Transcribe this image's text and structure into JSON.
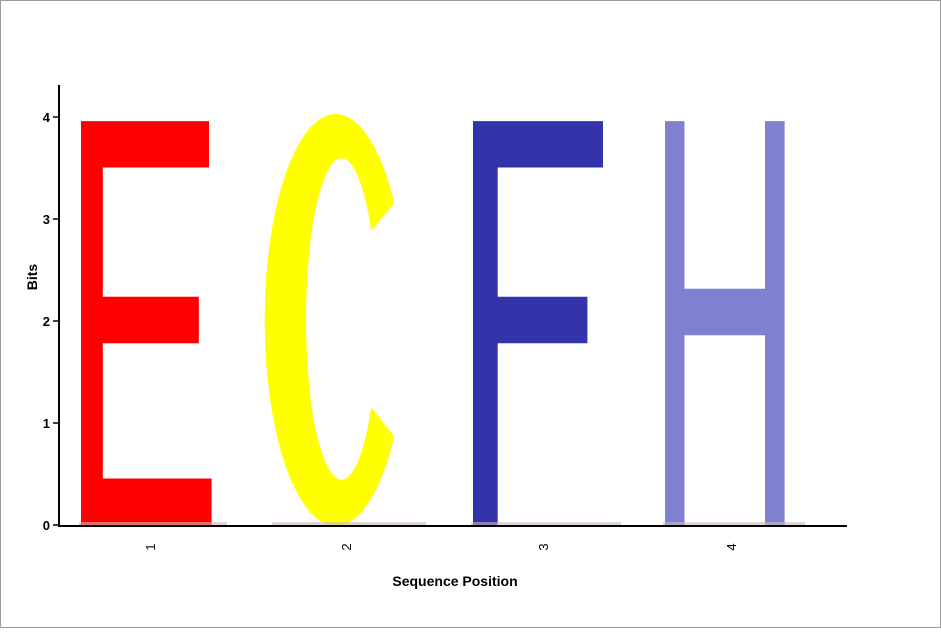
{
  "chart_data": {
    "type": "sequence-logo",
    "xlabel": "Sequence Position",
    "ylabel": "Bits",
    "ylim": [
      0,
      4.2
    ],
    "yticks": [
      0,
      1,
      2,
      3,
      4
    ],
    "positions": [
      {
        "label": "1",
        "letters": [
          {
            "char": "E",
            "bits": 3.96,
            "color": "#ff0000"
          }
        ]
      },
      {
        "label": "2",
        "letters": [
          {
            "char": "C",
            "bits": 4.04,
            "color": "#ffff00"
          }
        ]
      },
      {
        "label": "3",
        "letters": [
          {
            "char": "F",
            "bits": 3.96,
            "color": "#3333aa"
          }
        ]
      },
      {
        "label": "4",
        "letters": [
          {
            "char": "H",
            "bits": 3.96,
            "color": "#8080d0"
          }
        ]
      }
    ]
  }
}
